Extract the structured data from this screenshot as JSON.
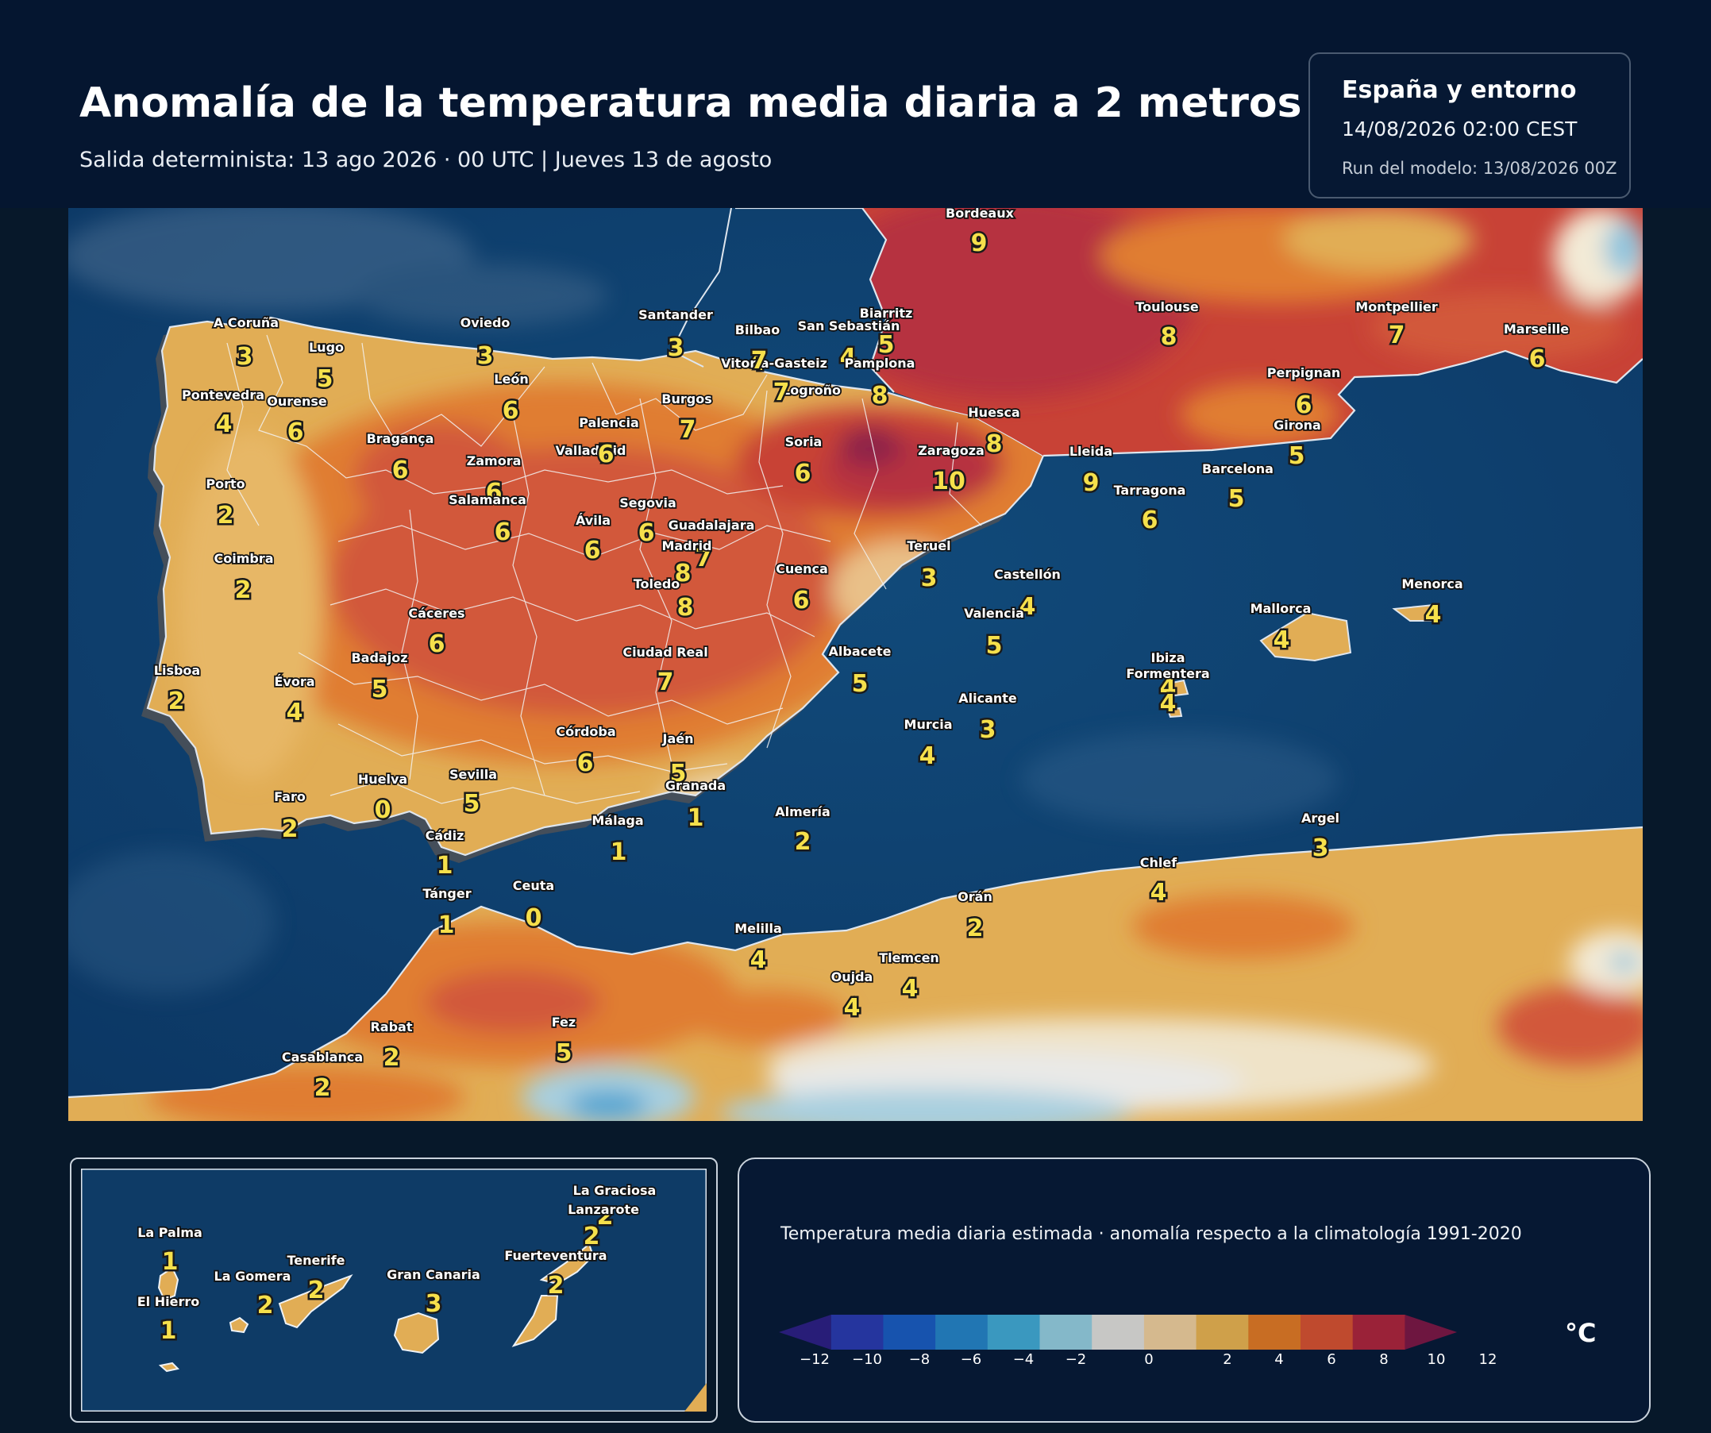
{
  "header": {
    "title": "Anomalía de la temperatura media diaria a 2 metros",
    "subtitle": "Salida determinista: 13 ago 2026 · 00 UTC  |  Jueves 13 de agosto"
  },
  "info_box": {
    "region": "España y entorno",
    "datetime": "14/08/2026  02:00 CEST",
    "run": "Run del modelo: 13/08/2026 00Z"
  },
  "stations": [
    {
      "name": "Bordeaux",
      "value": "9"
    },
    {
      "name": "A Coruña",
      "value": "3"
    },
    {
      "name": "Oviedo",
      "value": "3"
    },
    {
      "name": "Santander",
      "value": "3"
    },
    {
      "name": "Bilbao",
      "value": "4"
    },
    {
      "name": "Biarritz",
      "value": "5"
    },
    {
      "name": "San Sebastián",
      "value": "4"
    },
    {
      "name": "Toulouse",
      "value": "8"
    },
    {
      "name": "Montpellier",
      "value": "7"
    },
    {
      "name": "Marseille",
      "value": "6"
    },
    {
      "name": "Lugo",
      "value": "5"
    },
    {
      "name": "Vitoria-Gasteiz",
      "value": "7"
    },
    {
      "name": "Pamplona",
      "value": "8"
    },
    {
      "name": "León",
      "value": "6"
    },
    {
      "name": "Perpignan",
      "value": "6"
    },
    {
      "name": "Pontevedra",
      "value": "4"
    },
    {
      "name": "Ourense",
      "value": "6"
    },
    {
      "name": "Logroño",
      "value": "7"
    },
    {
      "name": "Burgos",
      "value": "7"
    },
    {
      "name": "Huesca",
      "value": "8"
    },
    {
      "name": "Girona",
      "value": "5"
    },
    {
      "name": "Bragança",
      "value": "6"
    },
    {
      "name": "Palencia",
      "value": "7"
    },
    {
      "name": "Soria",
      "value": "6"
    },
    {
      "name": "Valladolid",
      "value": "6"
    },
    {
      "name": "Zaragoza",
      "value": "10"
    },
    {
      "name": "Lleida",
      "value": "9"
    },
    {
      "name": "Zamora",
      "value": "6"
    },
    {
      "name": "Barcelona",
      "value": "5"
    },
    {
      "name": "Porto",
      "value": "2"
    },
    {
      "name": "Tarragona",
      "value": "6"
    },
    {
      "name": "Salamanca",
      "value": "6"
    },
    {
      "name": "Segovia",
      "value": "6"
    },
    {
      "name": "Ávila",
      "value": "6"
    },
    {
      "name": "Guadalajara",
      "value": "7"
    },
    {
      "name": "Madrid",
      "value": "8"
    },
    {
      "name": "Teruel",
      "value": "3"
    },
    {
      "name": "Coimbra",
      "value": "2"
    },
    {
      "name": "Cuenca",
      "value": "6"
    },
    {
      "name": "Castellón",
      "value": "4"
    },
    {
      "name": "Toledo",
      "value": "8"
    },
    {
      "name": "Menorca",
      "value": "4"
    },
    {
      "name": "Cáceres",
      "value": "6"
    },
    {
      "name": "Valencia",
      "value": "5"
    },
    {
      "name": "Mallorca",
      "value": "4"
    },
    {
      "name": "Ciudad Real",
      "value": "7"
    },
    {
      "name": "Albacete",
      "value": "5"
    },
    {
      "name": "Badajoz",
      "value": "5"
    },
    {
      "name": "Ibiza",
      "value": "4"
    },
    {
      "name": "Formentera",
      "value": "4"
    },
    {
      "name": "Lisboa",
      "value": "2"
    },
    {
      "name": "Évora",
      "value": "4"
    },
    {
      "name": "Alicante",
      "value": "3"
    },
    {
      "name": "Murcia",
      "value": "4"
    },
    {
      "name": "Córdoba",
      "value": "6"
    },
    {
      "name": "Jaén",
      "value": "5"
    },
    {
      "name": "Huelva",
      "value": "0"
    },
    {
      "name": "Sevilla",
      "value": "5"
    },
    {
      "name": "Granada",
      "value": "1"
    },
    {
      "name": "Faro",
      "value": "2"
    },
    {
      "name": "Almería",
      "value": "2"
    },
    {
      "name": "Málaga",
      "value": "1"
    },
    {
      "name": "Cádiz",
      "value": "1"
    },
    {
      "name": "Argel",
      "value": "3"
    },
    {
      "name": "Chlef",
      "value": "4"
    },
    {
      "name": "Tánger",
      "value": "1"
    },
    {
      "name": "Ceuta",
      "value": "0"
    },
    {
      "name": "Orán",
      "value": "2"
    },
    {
      "name": "Melilla",
      "value": "4"
    },
    {
      "name": "Tlemcen",
      "value": "4"
    },
    {
      "name": "Oujda",
      "value": "4"
    },
    {
      "name": "Rabat",
      "value": "2"
    },
    {
      "name": "Fez",
      "value": "5"
    },
    {
      "name": "Casablanca",
      "value": "2"
    }
  ],
  "canary_stations": [
    {
      "name": "La Graciosa",
      "value": "2"
    },
    {
      "name": "Lanzarote",
      "value": "2"
    },
    {
      "name": "La Palma",
      "value": "1"
    },
    {
      "name": "Tenerife",
      "value": "2"
    },
    {
      "name": "Fuerteventura",
      "value": "2"
    },
    {
      "name": "La Gomera",
      "value": "2"
    },
    {
      "name": "Gran Canaria",
      "value": "3"
    },
    {
      "name": "El Hierro",
      "value": "1"
    }
  ],
  "legend": {
    "caption": "Temperatura media diaria estimada · anomalía respecto a la climatología 1991-2020",
    "unit": "°C",
    "ticks": [
      "−12",
      "−10",
      "−8",
      "−6",
      "−4",
      "−2",
      "0",
      "2",
      "4",
      "6",
      "8",
      "10",
      "12"
    ],
    "colors": [
      "#281d78",
      "#25359e",
      "#1753ae",
      "#2176b3",
      "#3a98bf",
      "#84b8c9",
      "#c7c7c5",
      "#d5b98e",
      "#cfa04a",
      "#c86d23",
      "#bf4a2e",
      "#9a2238",
      "#6e1640"
    ]
  }
}
